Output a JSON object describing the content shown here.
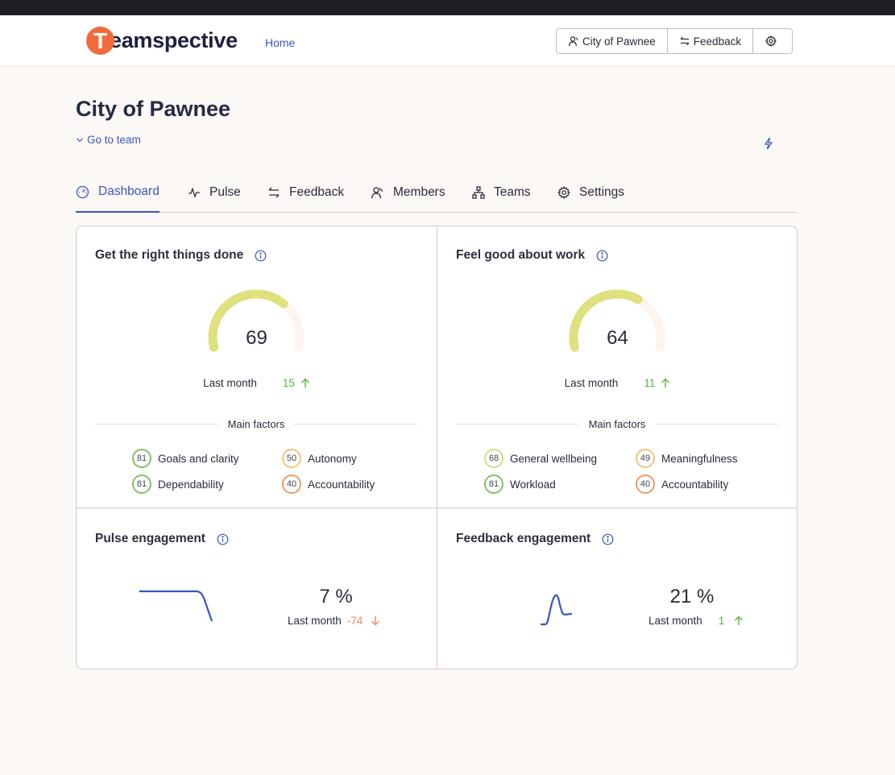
{
  "app": {
    "logo_initial": "T",
    "logo_text": "eamspective",
    "nav_home": "Home"
  },
  "header_buttons": {
    "org": "City of Pawnee",
    "feedback": "Feedback"
  },
  "page": {
    "title": "City of Pawnee",
    "go_to_team": "Go to team"
  },
  "tabs": [
    {
      "label": "Dashboard",
      "icon": "dashboard-icon",
      "active": true
    },
    {
      "label": "Pulse",
      "icon": "pulse-icon"
    },
    {
      "label": "Feedback",
      "icon": "exchange-icon"
    },
    {
      "label": "Members",
      "icon": "members-icon"
    },
    {
      "label": "Teams",
      "icon": "teams-icon"
    },
    {
      "label": "Settings",
      "icon": "gear-icon"
    }
  ],
  "cards": {
    "things_done": {
      "title": "Get the right things done",
      "score": "69",
      "score_fraction": 0.69,
      "last_month_label": "Last month",
      "delta": "15",
      "delta_dir": "up",
      "main_factors_label": "Main factors",
      "factors": [
        {
          "value": "81",
          "label": "Goals and clarity"
        },
        {
          "value": "50",
          "label": "Autonomy"
        },
        {
          "value": "81",
          "label": "Dependability"
        },
        {
          "value": "40",
          "label": "Accountability"
        }
      ]
    },
    "feel_good": {
      "title": "Feel good about work",
      "score": "64",
      "score_fraction": 0.64,
      "last_month_label": "Last month",
      "delta": "11",
      "delta_dir": "up",
      "main_factors_label": "Main factors",
      "factors": [
        {
          "value": "68",
          "label": "General wellbeing"
        },
        {
          "value": "49",
          "label": "Meaningfulness"
        },
        {
          "value": "81",
          "label": "Workload"
        },
        {
          "value": "40",
          "label": "Accountability"
        }
      ]
    },
    "pulse_engagement": {
      "title": "Pulse engagement",
      "value": "7 %",
      "last_month_label": "Last month",
      "delta": "-74",
      "delta_dir": "down"
    },
    "feedback_engagement": {
      "title": "Feedback engagement",
      "value": "21 %",
      "last_month_label": "Last month",
      "delta": "1",
      "delta_dir": "up"
    }
  },
  "colors": {
    "accent": "#3b54c2",
    "gauge": "#dfe07e",
    "up": "#5db14a",
    "down": "#ee8a5a",
    "logo": "#f26a3d"
  }
}
